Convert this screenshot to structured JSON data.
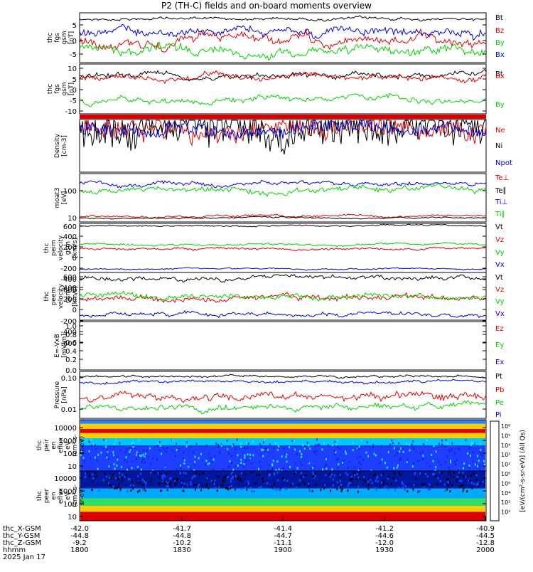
{
  "title": "P2 (TH-C) fields and on-board moments overview",
  "colors": {
    "black": "#000000",
    "red": "#e00000",
    "green": "#00d000",
    "blue": "#0000e0"
  },
  "chart_data": [
    {
      "type": "line",
      "id": "p1",
      "ylabel": [
        "thc",
        "fgs",
        "gsm",
        "[nT]"
      ],
      "yticks": [
        "5",
        "0",
        "-5"
      ],
      "ylim": [
        -8,
        9
      ],
      "series": [
        {
          "name": "Bt",
          "color": "black",
          "base": 7,
          "amp": 1
        },
        {
          "name": "Bz",
          "color": "red",
          "base": 0,
          "amp": 4
        },
        {
          "name": "By",
          "color": "green",
          "base": -4,
          "amp": 3
        },
        {
          "name": "Bx",
          "color": "blue",
          "base": 2,
          "amp": 3
        }
      ]
    },
    {
      "type": "line",
      "id": "p2",
      "ylabel": [
        "thc",
        "fgs",
        "gsm",
        "[nT]"
      ],
      "yticks": [
        "10",
        "5",
        "0",
        "-5",
        "-10"
      ],
      "ylim": [
        -13,
        11
      ],
      "series": [
        {
          "name": "Bt",
          "color": "black",
          "base": 5,
          "amp": 3
        },
        {
          "name": "Bx",
          "color": "red",
          "base": 5,
          "amp": 3
        },
        {
          "name": "By",
          "color": "green",
          "base": -6,
          "amp": 3
        }
      ]
    },
    {
      "type": "line",
      "id": "p3",
      "ylabel": [
        "Density",
        "[cm-3]"
      ],
      "yticks": [],
      "series": [
        {
          "name": "Ne",
          "color": "red"
        },
        {
          "name": "Ni",
          "color": "black"
        },
        {
          "name": "Npot",
          "color": "blue"
        }
      ]
    },
    {
      "type": "line",
      "id": "p4",
      "ylabel": [
        "moat3",
        "[eV]"
      ],
      "yticks": [
        "100",
        "10"
      ],
      "series": [
        {
          "name": "Te⊥",
          "color": "red"
        },
        {
          "name": "Te∥",
          "color": "black"
        },
        {
          "name": "Ti⊥",
          "color": "blue"
        },
        {
          "name": "Ti∥",
          "color": "green"
        }
      ]
    },
    {
      "type": "line",
      "id": "p5",
      "ylabel": [
        "thc",
        "peim",
        "velocity",
        "gsm",
        "[km/s]"
      ],
      "yticks": [
        "600",
        "400",
        "200",
        "0",
        "-200",
        "-400",
        "-600"
      ],
      "ylim": [
        -650,
        650
      ],
      "series": [
        {
          "name": "Vt",
          "color": "black",
          "base": 560,
          "amp": 20
        },
        {
          "name": "Vz",
          "color": "red",
          "base": 0,
          "amp": 30
        },
        {
          "name": "Vy",
          "color": "green",
          "base": 60,
          "amp": 30
        },
        {
          "name": "Vx",
          "color": "blue",
          "base": -560,
          "amp": 20
        }
      ]
    },
    {
      "type": "line",
      "id": "p6",
      "ylabel": [
        "thc",
        "peem",
        "velocity",
        "gsm",
        "[km/s]"
      ],
      "yticks": [
        "600",
        "400",
        "200",
        "0",
        "-200",
        "-400",
        "-600"
      ],
      "ylim": [
        -700,
        700
      ],
      "series": [
        {
          "name": "Vt",
          "color": "black",
          "base": 580,
          "amp": 60
        },
        {
          "name": "Vz",
          "color": "red",
          "base": -30,
          "amp": 80
        },
        {
          "name": "Vy",
          "color": "green",
          "base": 40,
          "amp": 80
        },
        {
          "name": "Vx",
          "color": "blue",
          "base": -580,
          "amp": 50
        }
      ]
    },
    {
      "type": "line",
      "id": "p7",
      "ylabel": [
        "E=-VxB",
        "[mV/m]"
      ],
      "yticks": [
        "1.0",
        "0.8",
        "0.6",
        "0.4",
        "0.2",
        "0.0"
      ],
      "ylim": [
        0,
        1
      ],
      "series": [
        {
          "name": "Ez",
          "color": "red"
        },
        {
          "name": "Ey",
          "color": "green"
        },
        {
          "name": "Ex",
          "color": "blue"
        }
      ]
    },
    {
      "type": "line",
      "id": "p8",
      "ylabel": [
        "Pressure",
        "[nPa]"
      ],
      "yticks": [
        "0.10",
        "0.01"
      ],
      "series": [
        {
          "name": "Pt",
          "color": "black"
        },
        {
          "name": "Pb",
          "color": "red"
        },
        {
          "name": "Pe",
          "color": "green"
        },
        {
          "name": "Pi",
          "color": "blue"
        }
      ]
    },
    {
      "type": "heatmap",
      "id": "p9",
      "ylabel": [
        "thc",
        "peir",
        "en",
        "eflux",
        "eV",
        "(cm²-s-",
        "sr-eV)"
      ],
      "yticks": [
        "10000",
        "1000",
        "100",
        "10"
      ]
    },
    {
      "type": "heatmap",
      "id": "p10",
      "ylabel": [
        "thc",
        "peer",
        "en",
        "eflux",
        "eV",
        "(cm²-s-",
        "sr-eV)"
      ],
      "yticks": [
        "10000",
        "1000",
        "100",
        "10"
      ]
    }
  ],
  "colorbar": {
    "ticks": [
      "10⁶",
      "10⁵",
      "10⁴",
      "10³",
      "10²",
      "10⁶",
      "10⁵",
      "10⁴",
      "10³",
      "10²"
    ],
    "label": "[eV/(cm²-s-sr-eV)] (All Qs)"
  },
  "xaxis": {
    "labels": [
      "thc_X-GSM",
      "thc_Y-GSM",
      "thc_Z-GSM",
      "hhmm",
      "2025 Jan 17"
    ],
    "ticks": [
      {
        "x": [
          "-42.0",
          "-44.8",
          "-9.2",
          "1800"
        ]
      },
      {
        "x": [
          "-41.7",
          "-44.8",
          "-10.2",
          "1830"
        ]
      },
      {
        "x": [
          "-41.4",
          "-44.7",
          "-11.1",
          "1900"
        ]
      },
      {
        "x": [
          "-41.2",
          "-44.6",
          "-12.0",
          "1930"
        ]
      },
      {
        "x": [
          "-40.9",
          "-44.5",
          "-12.8",
          "2000"
        ]
      }
    ]
  }
}
